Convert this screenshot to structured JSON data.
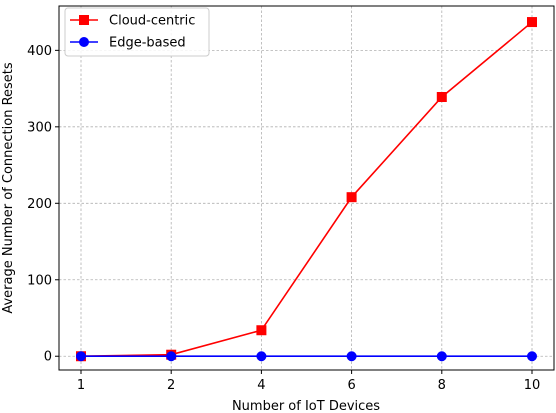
{
  "chart_data": {
    "type": "line",
    "title": "",
    "xlabel": "Number of IoT Devices",
    "ylabel": "Average Number of Connection Resets",
    "categories": [
      "1",
      "2",
      "4",
      "6",
      "8",
      "10"
    ],
    "yticks": [
      "0",
      "100",
      "200",
      "300",
      "400"
    ],
    "ylim": [
      -18,
      458
    ],
    "grid": true,
    "legend_position": "top-left",
    "series": [
      {
        "name": "Cloud-centric",
        "color": "#ff0000",
        "marker": "square",
        "values": [
          0,
          2,
          34,
          208,
          339,
          437
        ]
      },
      {
        "name": "Edge-based",
        "color": "#0000ff",
        "marker": "circle",
        "values": [
          0,
          0,
          0,
          0,
          0,
          0
        ]
      }
    ]
  }
}
